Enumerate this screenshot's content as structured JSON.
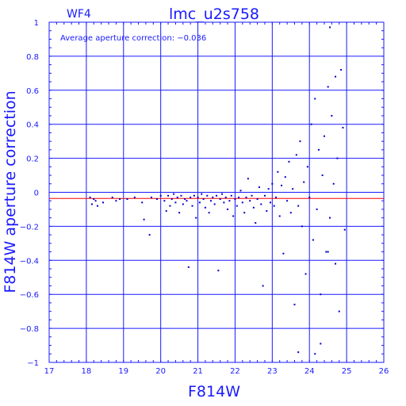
{
  "chart_data": {
    "type": "scatter",
    "title": "lmc_u2s758",
    "chip_label": "WF4",
    "xlabel": "F814W",
    "ylabel": "F814W aperture correction",
    "annotation": "Average aperture correction: −0.036",
    "average": -0.036,
    "xlim": [
      17,
      26
    ],
    "ylim": [
      -1,
      1
    ],
    "xticks": [
      17,
      18,
      19,
      20,
      21,
      22,
      23,
      24,
      25,
      26
    ],
    "yticks": [
      -1,
      -0.8,
      -0.6,
      -0.4,
      -0.2,
      0,
      0.2,
      0.4,
      0.6,
      0.8,
      1
    ],
    "grid": true,
    "colors": {
      "axes": "#1a1aff",
      "points": "#0000cc",
      "average_line": "#ff0000",
      "background": "#ffffff"
    },
    "points": [
      [
        18.1,
        -0.03
      ],
      [
        18.2,
        -0.04
      ],
      [
        18.15,
        -0.07
      ],
      [
        18.25,
        -0.05
      ],
      [
        18.3,
        -0.08
      ],
      [
        18.45,
        -0.06
      ],
      [
        18.7,
        -0.03
      ],
      [
        18.8,
        -0.05
      ],
      [
        18.9,
        -0.04
      ],
      [
        19.1,
        -0.04
      ],
      [
        19.3,
        -0.03
      ],
      [
        19.5,
        -0.06
      ],
      [
        19.55,
        -0.16
      ],
      [
        19.7,
        -0.25
      ],
      [
        19.75,
        -0.03
      ],
      [
        19.9,
        -0.04
      ],
      [
        20.0,
        -0.02
      ],
      [
        20.1,
        -0.05
      ],
      [
        20.15,
        -0.11
      ],
      [
        20.2,
        -0.02
      ],
      [
        20.25,
        -0.08
      ],
      [
        20.3,
        -0.04
      ],
      [
        20.35,
        -0.01
      ],
      [
        20.4,
        -0.06
      ],
      [
        20.45,
        -0.03
      ],
      [
        20.5,
        -0.12
      ],
      [
        20.55,
        -0.02
      ],
      [
        20.6,
        -0.07
      ],
      [
        20.65,
        -0.04
      ],
      [
        20.7,
        -0.05
      ],
      [
        20.75,
        -0.44
      ],
      [
        20.8,
        -0.03
      ],
      [
        20.85,
        -0.08
      ],
      [
        20.9,
        -0.02
      ],
      [
        20.95,
        -0.15
      ],
      [
        21.0,
        -0.03
      ],
      [
        21.05,
        -0.06
      ],
      [
        21.1,
        -0.01
      ],
      [
        21.15,
        -0.04
      ],
      [
        21.2,
        -0.09
      ],
      [
        21.25,
        -0.02
      ],
      [
        21.3,
        -0.12
      ],
      [
        21.35,
        -0.05
      ],
      [
        21.4,
        -0.03
      ],
      [
        21.45,
        -0.07
      ],
      [
        21.5,
        -0.02
      ],
      [
        21.55,
        -0.46
      ],
      [
        21.6,
        -0.04
      ],
      [
        21.65,
        -0.01
      ],
      [
        21.7,
        -0.06
      ],
      [
        21.75,
        -0.03
      ],
      [
        21.8,
        -0.1
      ],
      [
        21.85,
        -0.05
      ],
      [
        21.9,
        -0.02
      ],
      [
        21.95,
        -0.14
      ],
      [
        22.0,
        -0.04
      ],
      [
        22.05,
        -0.08
      ],
      [
        22.1,
        -0.03
      ],
      [
        22.15,
        0.01
      ],
      [
        22.2,
        -0.06
      ],
      [
        22.25,
        -0.12
      ],
      [
        22.3,
        -0.03
      ],
      [
        22.35,
        0.08
      ],
      [
        22.4,
        -0.05
      ],
      [
        22.45,
        -0.02
      ],
      [
        22.5,
        -0.09
      ],
      [
        22.55,
        -0.18
      ],
      [
        22.6,
        -0.04
      ],
      [
        22.65,
        0.03
      ],
      [
        22.7,
        -0.07
      ],
      [
        22.75,
        -0.55
      ],
      [
        22.8,
        -0.02
      ],
      [
        22.85,
        -0.11
      ],
      [
        22.9,
        0.02
      ],
      [
        22.95,
        -0.06
      ],
      [
        23.0,
        0.05
      ],
      [
        23.05,
        -0.08
      ],
      [
        23.1,
        -0.03
      ],
      [
        23.15,
        0.12
      ],
      [
        23.2,
        -0.14
      ],
      [
        23.25,
        0.04
      ],
      [
        23.3,
        -0.36
      ],
      [
        23.35,
        0.09
      ],
      [
        23.4,
        -0.05
      ],
      [
        23.45,
        0.18
      ],
      [
        23.5,
        -0.12
      ],
      [
        23.55,
        0.02
      ],
      [
        23.6,
        -0.66
      ],
      [
        23.65,
        0.22
      ],
      [
        23.7,
        -0.08
      ],
      [
        23.75,
        0.3
      ],
      [
        23.8,
        -0.2
      ],
      [
        23.85,
        0.06
      ],
      [
        23.9,
        -0.48
      ],
      [
        23.95,
        0.15
      ],
      [
        24.0,
        -0.03
      ],
      [
        24.05,
        0.4
      ],
      [
        24.1,
        -0.28
      ],
      [
        24.15,
        0.55
      ],
      [
        24.2,
        -0.1
      ],
      [
        24.25,
        0.25
      ],
      [
        24.3,
        -0.6
      ],
      [
        24.35,
        0.1
      ],
      [
        24.4,
        0.33
      ],
      [
        24.45,
        -0.35
      ],
      [
        24.5,
        0.62
      ],
      [
        24.55,
        -0.15
      ],
      [
        24.6,
        0.45
      ],
      [
        24.65,
        0.05
      ],
      [
        24.7,
        -0.42
      ],
      [
        24.75,
        0.2
      ],
      [
        24.8,
        -0.7
      ],
      [
        24.85,
        0.72
      ],
      [
        24.9,
        0.38
      ],
      [
        24.95,
        -0.22
      ],
      [
        24.55,
        0.97
      ],
      [
        23.7,
        -0.94
      ],
      [
        24.3,
        -0.89
      ],
      [
        24.15,
        -0.95
      ],
      [
        24.5,
        -0.35
      ],
      [
        24.7,
        0.68
      ]
    ]
  }
}
